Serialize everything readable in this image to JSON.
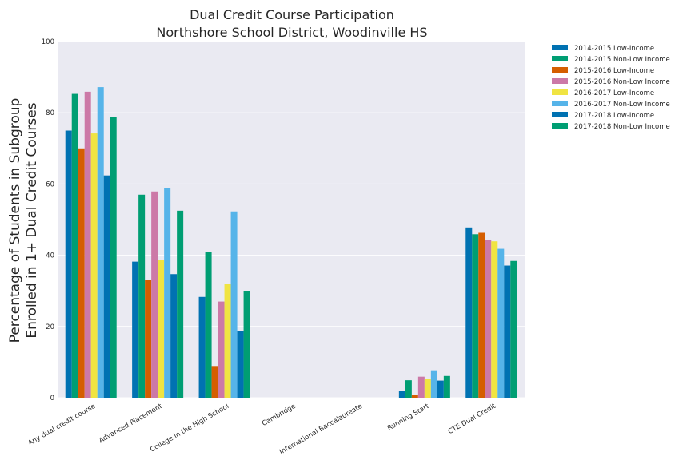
{
  "chart_data": {
    "type": "bar",
    "title_line1": "Dual Credit Course Participation",
    "title_line2": "Northshore School District, Woodinville HS",
    "ylabel_line1": "Percentage of Students in Subgroup",
    "ylabel_line2": "Enrolled in 1+ Dual Credit Courses",
    "xlabel": "",
    "ylim": [
      0,
      100
    ],
    "yticks": [
      0,
      20,
      40,
      60,
      80,
      100
    ],
    "grid": true,
    "legend_position": "outside-top-right",
    "categories": [
      "Any dual credit course",
      "Advanced Placement",
      "College in the High School",
      "Cambridge",
      "International Baccalaureate",
      "Running Start",
      "CTE Dual Credit"
    ],
    "series": [
      {
        "name": "2014-2015 Low-Income",
        "color": "#0072B2",
        "values": [
          75,
          38.2,
          28.3,
          0,
          0,
          1.9,
          47.8
        ]
      },
      {
        "name": "2014-2015 Non-Low Income",
        "color": "#009E73",
        "values": [
          85.3,
          57,
          40.9,
          0,
          0,
          4.9,
          45.9
        ]
      },
      {
        "name": "2015-2016 Low-Income",
        "color": "#D55E00",
        "values": [
          70,
          33.1,
          8.9,
          0,
          0,
          0.8,
          46.3
        ]
      },
      {
        "name": "2015-2016 Non-Low Income",
        "color": "#CC79A7",
        "values": [
          85.9,
          57.9,
          27,
          0,
          0,
          5.9,
          44.2
        ]
      },
      {
        "name": "2016-2017 Low-Income",
        "color": "#F0E442",
        "values": [
          74.2,
          38.7,
          31.9,
          0,
          0,
          5.3,
          43.9
        ]
      },
      {
        "name": "2016-2017 Non-Low Income",
        "color": "#56B4E9",
        "values": [
          87.2,
          58.9,
          52.3,
          0,
          0,
          7.7,
          41.8
        ]
      },
      {
        "name": "2017-2018 Low-Income",
        "color": "#0072B2",
        "values": [
          62.4,
          34.7,
          18.8,
          0,
          0,
          4.8,
          37.1
        ]
      },
      {
        "name": "2017-2018 Non-Low Income",
        "color": "#009E73",
        "values": [
          78.9,
          52.5,
          30,
          0,
          0,
          6.1,
          38.4
        ]
      }
    ]
  }
}
